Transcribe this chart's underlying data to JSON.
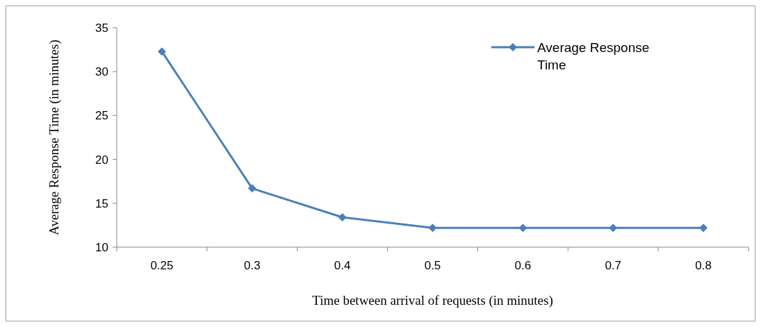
{
  "chart_data": {
    "type": "line",
    "xlabel": "Time between arrival of requests (in minutes)",
    "ylabel": "Average Response Time (in minutes)",
    "categories": [
      "0.25",
      "0.3",
      "0.4",
      "0.5",
      "0.6",
      "0.7",
      "0.8"
    ],
    "series": [
      {
        "name": "Average Response Time",
        "color": "#4a7ebb",
        "values": [
          32.3,
          16.7,
          13.4,
          12.2,
          12.2,
          12.2,
          12.2
        ]
      }
    ],
    "ylim": [
      10,
      35
    ],
    "yticks": [
      10,
      15,
      20,
      25,
      30,
      35
    ],
    "grid": false,
    "legend": "top right",
    "marker": "diamond",
    "line_style": "solid"
  }
}
